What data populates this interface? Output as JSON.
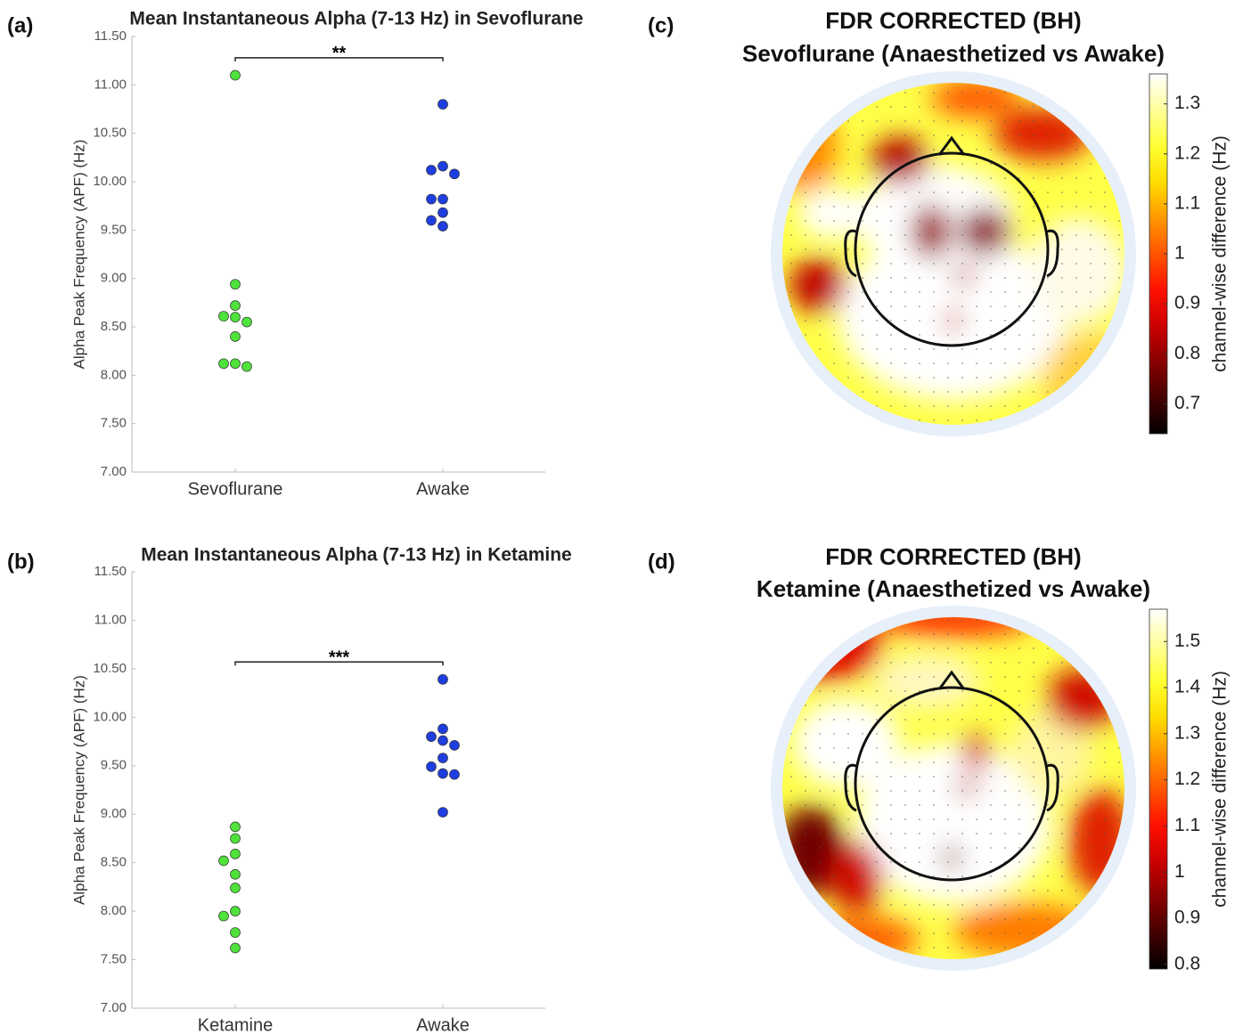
{
  "chart_data": [
    {
      "type": "strip",
      "panel_label": "(a)",
      "title": "Mean Instantaneous Alpha (7-13 Hz) in Sevoflurane",
      "y_label": "Alpha Peak Frequency (APF) (Hz)",
      "categories": [
        "Sevoflurane",
        "Awake"
      ],
      "colors": [
        "#4ee23a",
        "#1f3ee0"
      ],
      "values": [
        [
          11.1,
          8.94,
          8.72,
          8.61,
          8.6,
          8.55,
          8.4,
          8.12,
          8.12,
          8.09
        ],
        [
          10.8,
          10.16,
          10.12,
          10.08,
          9.82,
          9.82,
          9.68,
          9.6,
          9.54
        ]
      ],
      "significance": "**",
      "ylim": [
        7.0,
        11.5
      ],
      "yticks": [
        {
          "value": 7.0,
          "label": "7.00"
        },
        {
          "value": 7.5,
          "label": "7.50"
        },
        {
          "value": 8.0,
          "label": "8.00"
        },
        {
          "value": 8.5,
          "label": "8.50"
        },
        {
          "value": 9.0,
          "label": "9.00"
        },
        {
          "value": 9.5,
          "label": "9.50"
        },
        {
          "value": 10.0,
          "label": "10.00"
        },
        {
          "value": 10.5,
          "label": "10.50"
        },
        {
          "value": 11.0,
          "label": "11.00"
        },
        {
          "value": 11.5,
          "label": "11.50"
        }
      ]
    },
    {
      "type": "strip",
      "panel_label": "(b)",
      "title": "Mean Instantaneous Alpha (7-13 Hz) in Ketamine",
      "y_label": "Alpha Peak Frequency (APF) (Hz)",
      "categories": [
        "Ketamine",
        "Awake"
      ],
      "colors": [
        "#4ee23a",
        "#1f3ee0"
      ],
      "values": [
        [
          8.87,
          8.75,
          8.59,
          8.52,
          8.38,
          8.24,
          8.0,
          7.95,
          7.78,
          7.62
        ],
        [
          10.39,
          9.88,
          9.8,
          9.76,
          9.71,
          9.58,
          9.49,
          9.42,
          9.41,
          9.02
        ]
      ],
      "significance": "***",
      "ylim": [
        7.0,
        11.5
      ],
      "yticks": [
        {
          "value": 7.0,
          "label": "7.00"
        },
        {
          "value": 7.5,
          "label": "7.50"
        },
        {
          "value": 8.0,
          "label": "8.00"
        },
        {
          "value": 8.5,
          "label": "8.50"
        },
        {
          "value": 9.0,
          "label": "9.00"
        },
        {
          "value": 9.5,
          "label": "9.50"
        },
        {
          "value": 10.0,
          "label": "10.00"
        },
        {
          "value": 10.5,
          "label": "10.50"
        },
        {
          "value": 11.0,
          "label": "11.00"
        },
        {
          "value": 11.5,
          "label": "11.50"
        }
      ]
    },
    {
      "type": "topomap",
      "panel_label": "(c)",
      "title": "FDR CORRECTED (BH)",
      "subtitle": "Sevoflurane (Anaesthetized vs Awake)",
      "colorbar_label": "channel-wise difference (Hz)",
      "colormap": "hot",
      "clim": [
        0.64,
        1.36
      ],
      "cticks": [
        0.7,
        0.8,
        0.9,
        1,
        1.1,
        1.2,
        1.3
      ]
    },
    {
      "type": "topomap",
      "panel_label": "(d)",
      "title": "FDR CORRECTED (BH)",
      "subtitle": "Ketamine (Anaesthetized vs Awake)",
      "colorbar_label": "channel-wise difference (Hz)",
      "colormap": "hot",
      "clim": [
        0.79,
        1.57
      ],
      "cticks": [
        0.8,
        0.9,
        1,
        1.1,
        1.2,
        1.3,
        1.4,
        1.5
      ]
    }
  ]
}
